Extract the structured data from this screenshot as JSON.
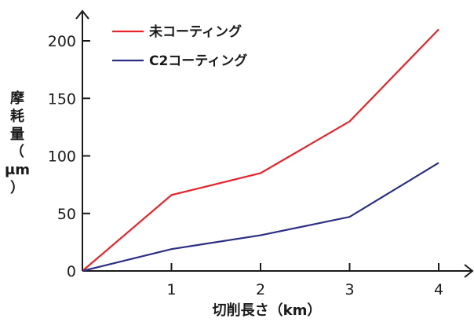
{
  "chart_data": {
    "type": "line",
    "title": "",
    "xlabel": "切削長さ（km）",
    "ylabel": [
      "摩",
      "耗",
      "量",
      "（",
      "μm",
      "）"
    ],
    "x": [
      0,
      1,
      2,
      3,
      4
    ],
    "x_ticks": [
      "1",
      "2",
      "3",
      "4"
    ],
    "x_tick_values": [
      1,
      2,
      3,
      4
    ],
    "y_ticks": [
      "0",
      "50",
      "100",
      "150",
      "200"
    ],
    "y_tick_values": [
      0,
      50,
      100,
      150,
      200
    ],
    "xlim": [
      0,
      4.35
    ],
    "ylim": [
      0,
      225
    ],
    "grid": false,
    "legend_position": "top-left",
    "series": [
      {
        "name": "未コーティング",
        "color": "#e8232a",
        "values": [
          0,
          66,
          85,
          130,
          210
        ]
      },
      {
        "name": "C2コーティング",
        "color": "#2b2e83",
        "values": [
          0,
          19,
          31,
          47,
          94
        ]
      }
    ]
  }
}
